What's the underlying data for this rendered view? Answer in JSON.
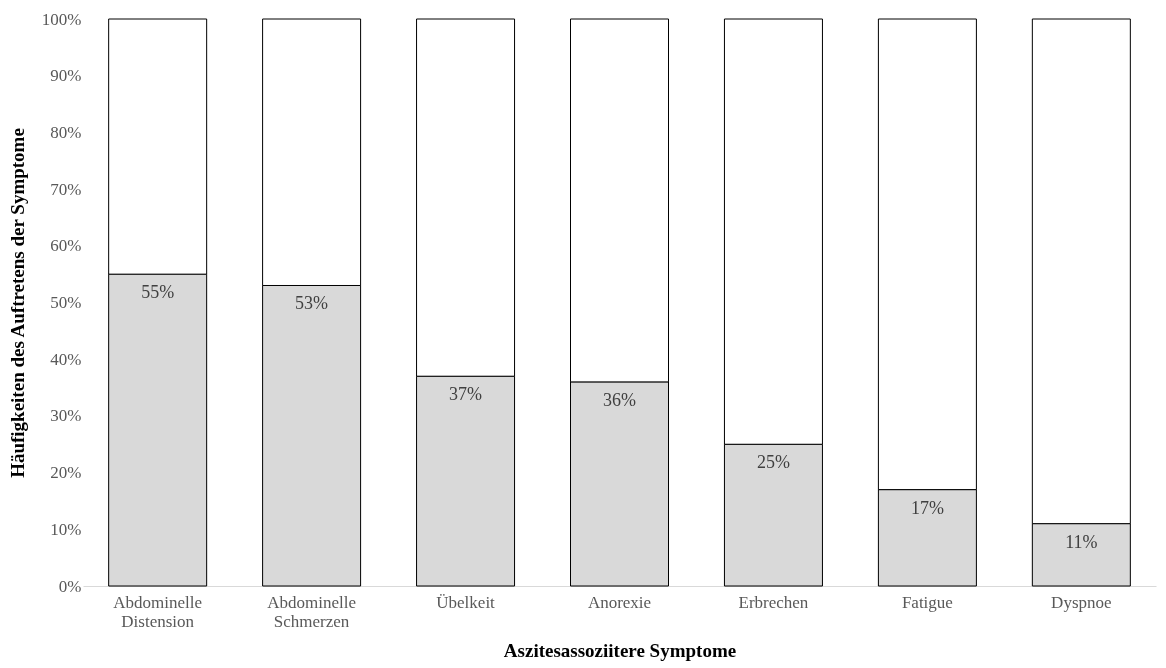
{
  "chart_data": {
    "type": "bar",
    "stacked": true,
    "xlabel": "Aszitesassoziitere Symptome",
    "ylabel": "Häufigkeiten des Auftretens der Symptome",
    "categories": [
      "Abdominelle Distension",
      "Abdominelle Schmerzen",
      "Übelkeit",
      "Anorexie",
      "Erbrechen",
      "Fatigue",
      "Dyspnoe"
    ],
    "series": [
      {
        "color": "#d9d9d9",
        "values": [
          55,
          53,
          37,
          36,
          25,
          17,
          11
        ],
        "value_labels": [
          "55%",
          "53%",
          "37%",
          "36%",
          "25%",
          "17%",
          "11%"
        ]
      },
      {
        "color": "#ffffff",
        "values": [
          45,
          47,
          63,
          64,
          75,
          83,
          89
        ]
      }
    ],
    "ylim": [
      0,
      100
    ],
    "yticks": [
      {
        "value": 0,
        "label": "0%"
      },
      {
        "value": 10,
        "label": "10%"
      },
      {
        "value": 20,
        "label": "20%"
      },
      {
        "value": 30,
        "label": "30%"
      },
      {
        "value": 40,
        "label": "40%"
      },
      {
        "value": 50,
        "label": "50%"
      },
      {
        "value": 60,
        "label": "60%"
      },
      {
        "value": 70,
        "label": "70%"
      },
      {
        "value": 80,
        "label": "80%"
      },
      {
        "value": 90,
        "label": "90%"
      },
      {
        "value": 100,
        "label": "100%"
      }
    ]
  }
}
